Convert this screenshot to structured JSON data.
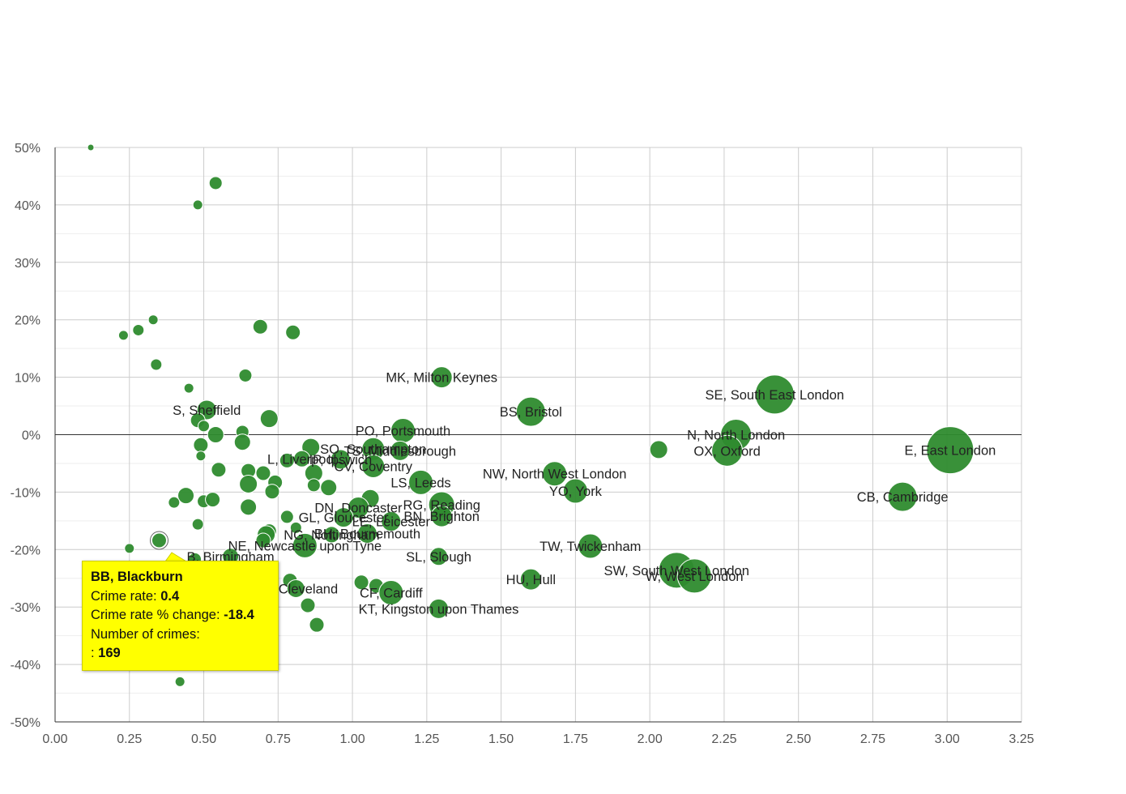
{
  "chart_data": {
    "type": "scatter",
    "title": "",
    "xlabel": "",
    "ylabel": "",
    "xlim": [
      0,
      3.25
    ],
    "ylim": [
      -50,
      50
    ],
    "x_ticks": [
      "0.00",
      "0.25",
      "0.50",
      "0.75",
      "1.00",
      "1.25",
      "1.50",
      "1.75",
      "2.00",
      "2.25",
      "2.50",
      "2.75",
      "3.00",
      "3.25"
    ],
    "y_ticks": [
      "50%",
      "40%",
      "30%",
      "20%",
      "10%",
      "0%",
      "-10%",
      "-20%",
      "-30%",
      "-40%",
      "-50%"
    ],
    "grid": true,
    "bubble_color": "#2e8b2e",
    "series": [
      {
        "points": [
          {
            "x": 0.12,
            "y": 50,
            "size": 4
          },
          {
            "x": 0.54,
            "y": 43.8,
            "size": 8
          },
          {
            "x": 0.48,
            "y": 40,
            "size": 6
          },
          {
            "x": 0.33,
            "y": 20,
            "size": 6
          },
          {
            "x": 0.28,
            "y": 18.2,
            "size": 7
          },
          {
            "x": 0.23,
            "y": 17.3,
            "size": 6
          },
          {
            "x": 0.69,
            "y": 18.8,
            "size": 9
          },
          {
            "x": 0.8,
            "y": 17.8,
            "size": 9
          },
          {
            "x": 0.34,
            "y": 12.2,
            "size": 7
          },
          {
            "x": 0.64,
            "y": 10.3,
            "size": 8
          },
          {
            "x": 0.45,
            "y": 8.1,
            "size": 6
          },
          {
            "x": 1.3,
            "y": 10,
            "size": 13,
            "label": "MK, Milton Keynes"
          },
          {
            "x": 1.6,
            "y": 4,
            "size": 18,
            "label": "BS, Bristol"
          },
          {
            "x": 2.42,
            "y": 7,
            "size": 24,
            "label": "SE, South East London"
          },
          {
            "x": 2.29,
            "y": 0,
            "size": 19,
            "label": "N, North London"
          },
          {
            "x": 2.26,
            "y": -2.8,
            "size": 19,
            "label": "OX, Oxford"
          },
          {
            "x": 3.01,
            "y": -2.7,
            "size": 29,
            "label": "E, East London"
          },
          {
            "x": 2.03,
            "y": -2.6,
            "size": 11
          },
          {
            "x": 0.51,
            "y": 4.3,
            "size": 12,
            "label": "S, Sheffield"
          },
          {
            "x": 0.48,
            "y": 2.5,
            "size": 9
          },
          {
            "x": 0.5,
            "y": 1.5,
            "size": 7
          },
          {
            "x": 0.72,
            "y": 2.8,
            "size": 11
          },
          {
            "x": 0.54,
            "y": 0,
            "size": 10
          },
          {
            "x": 0.63,
            "y": 0.5,
            "size": 8
          },
          {
            "x": 0.63,
            "y": -1.3,
            "size": 10
          },
          {
            "x": 0.49,
            "y": -1.8,
            "size": 9
          },
          {
            "x": 0.49,
            "y": -3.7,
            "size": 6
          },
          {
            "x": 1.17,
            "y": 0.7,
            "size": 15,
            "label": "PO, Portsmouth"
          },
          {
            "x": 1.07,
            "y": -2.5,
            "size": 14,
            "label": "SO, Southampton"
          },
          {
            "x": 1.16,
            "y": -2.8,
            "size": 12,
            "label": "TS, Middlesbrough"
          },
          {
            "x": 0.86,
            "y": -2.2,
            "size": 11
          },
          {
            "x": 0.83,
            "y": -4.2,
            "size": 10,
            "label": "L, Liverpool"
          },
          {
            "x": 0.96,
            "y": -4.3,
            "size": 12,
            "label": "IP, Ipswich"
          },
          {
            "x": 1.07,
            "y": -5.5,
            "size": 14,
            "label": "CV, Coventry"
          },
          {
            "x": 0.78,
            "y": -4.5,
            "size": 9
          },
          {
            "x": 0.7,
            "y": -6.7,
            "size": 9
          },
          {
            "x": 0.55,
            "y": -6.1,
            "size": 9
          },
          {
            "x": 0.65,
            "y": -6.3,
            "size": 9
          },
          {
            "x": 0.87,
            "y": -6.7,
            "size": 11
          },
          {
            "x": 0.74,
            "y": -8.3,
            "size": 9
          },
          {
            "x": 1.23,
            "y": -8.3,
            "size": 15,
            "label": "LS, Leeds"
          },
          {
            "x": 1.68,
            "y": -6.8,
            "size": 15,
            "label": "NW, North West London"
          },
          {
            "x": 1.75,
            "y": -9.8,
            "size": 15,
            "label": "YO, York"
          },
          {
            "x": 2.85,
            "y": -10.8,
            "size": 18,
            "label": "CB, Cambridge"
          },
          {
            "x": 0.65,
            "y": -8.6,
            "size": 11
          },
          {
            "x": 0.87,
            "y": -8.8,
            "size": 8
          },
          {
            "x": 0.92,
            "y": -9.2,
            "size": 10
          },
          {
            "x": 0.73,
            "y": -9.9,
            "size": 9
          },
          {
            "x": 0.44,
            "y": -10.6,
            "size": 10
          },
          {
            "x": 0.4,
            "y": -11.8,
            "size": 7
          },
          {
            "x": 0.5,
            "y": -11.6,
            "size": 8
          },
          {
            "x": 0.53,
            "y": -11.3,
            "size": 9
          },
          {
            "x": 1.06,
            "y": -11.1,
            "size": 11
          },
          {
            "x": 0.65,
            "y": -12.6,
            "size": 10
          },
          {
            "x": 1.3,
            "y": -12.2,
            "size": 16,
            "label": "RG, Reading"
          },
          {
            "x": 1.02,
            "y": -12.7,
            "size": 13,
            "label": "DN, Doncaster"
          },
          {
            "x": 0.97,
            "y": -14.4,
            "size": 12,
            "label": "GL, Gloucester"
          },
          {
            "x": 1.3,
            "y": -14.2,
            "size": 13,
            "label": "BN, Brighton"
          },
          {
            "x": 1.13,
            "y": -15.1,
            "size": 12,
            "label": "LE, Leicester"
          },
          {
            "x": 0.78,
            "y": -14.3,
            "size": 8
          },
          {
            "x": 0.48,
            "y": -15.6,
            "size": 7
          },
          {
            "x": 0.81,
            "y": -16.2,
            "size": 7
          },
          {
            "x": 1.05,
            "y": -17.2,
            "size": 12,
            "label": "BH, Bournemouth"
          },
          {
            "x": 0.93,
            "y": -17.4,
            "size": 10,
            "label": "NG, Nottingham"
          },
          {
            "x": 0.72,
            "y": -16.8,
            "size": 9
          },
          {
            "x": 0.71,
            "y": -17.4,
            "size": 11
          },
          {
            "x": 0.7,
            "y": -18.4,
            "size": 9
          },
          {
            "x": 0.84,
            "y": -19.3,
            "size": 15,
            "label": "NE, Newcastle upon Tyne"
          },
          {
            "x": 0.35,
            "y": -18.4,
            "size": 9,
            "highlight": true
          },
          {
            "x": 0.25,
            "y": -19.8,
            "size": 6
          },
          {
            "x": 1.8,
            "y": -19.4,
            "size": 15,
            "label": "TW, Twickenham"
          },
          {
            "x": 1.29,
            "y": -21.2,
            "size": 11,
            "label": "SL, Slough"
          },
          {
            "x": 0.47,
            "y": -21.7,
            "size": 8
          },
          {
            "x": 0.59,
            "y": -21.2,
            "size": 10,
            "label": "B, Birmingham"
          },
          {
            "x": 2.09,
            "y": -23.6,
            "size": 22,
            "label": "SW, South West London"
          },
          {
            "x": 2.15,
            "y": -24.6,
            "size": 21,
            "label": "W, West London"
          },
          {
            "x": 1.6,
            "y": -25.2,
            "size": 13,
            "label": "HU, Hull"
          },
          {
            "x": 0.79,
            "y": -25.4,
            "size": 9
          },
          {
            "x": 0.81,
            "y": -26.8,
            "size": 11,
            "label": "TS, Cleveland"
          },
          {
            "x": 1.03,
            "y": -25.7,
            "size": 9
          },
          {
            "x": 1.08,
            "y": -26.3,
            "size": 9
          },
          {
            "x": 1.13,
            "y": -27.5,
            "size": 15,
            "label": "CF, Cardiff"
          },
          {
            "x": 0.85,
            "y": -29.7,
            "size": 9
          },
          {
            "x": 1.29,
            "y": -30.3,
            "size": 12,
            "label": "KT, Kingston upon Thames"
          },
          {
            "x": 0.88,
            "y": -33.1,
            "size": 9
          },
          {
            "x": 0.42,
            "y": -43,
            "size": 6
          }
        ]
      }
    ]
  },
  "tooltip": {
    "title": "BB, Blackburn",
    "rate_label": "Crime rate: ",
    "rate_value": "0.4",
    "change_label": "Crime rate % change: ",
    "change_value": "-18.4",
    "crimes_label": "Number of crimes:",
    "crimes_prefix": ": ",
    "crimes_value": "169"
  }
}
